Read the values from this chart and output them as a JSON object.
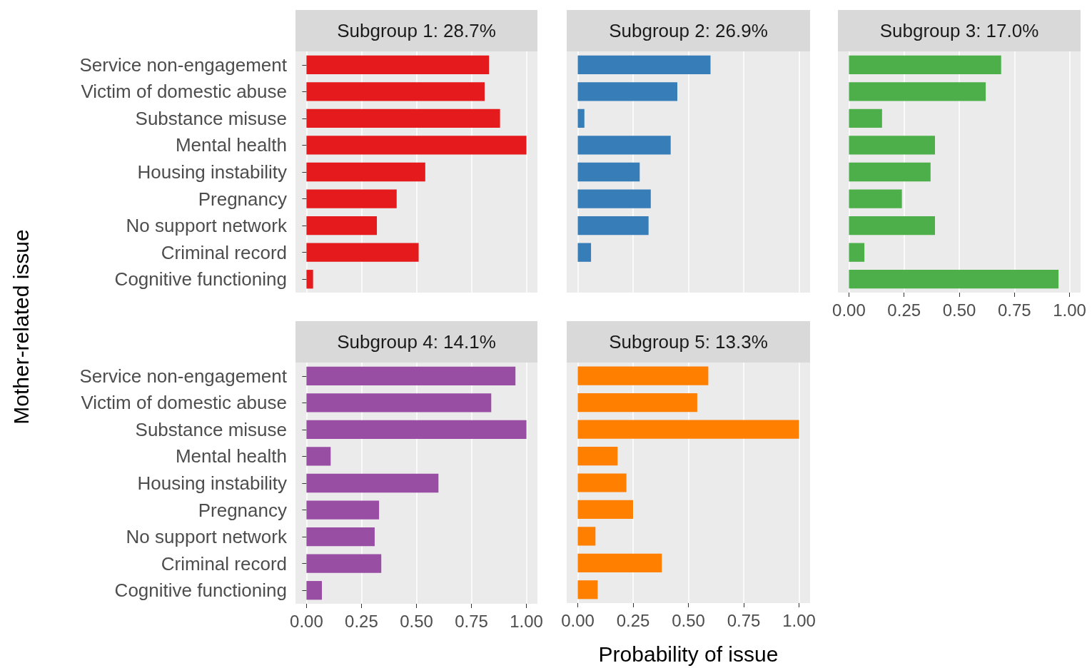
{
  "chart_data": [
    {
      "type": "bar",
      "orientation": "horizontal",
      "title": "Subgroup 1: 28.7%",
      "ylabel": "Mother-related issue",
      "categories": [
        "Service non-engagement",
        "Victim of domestic abuse",
        "Substance misuse",
        "Mental health",
        "Housing instability",
        "Pregnancy",
        "No support network",
        "Criminal record",
        "Cognitive functioning"
      ],
      "values": [
        0.83,
        0.81,
        0.88,
        1.0,
        0.54,
        0.41,
        0.32,
        0.51,
        0.03
      ],
      "color": "#e41a1c",
      "xlim": [
        -0.05,
        1.05
      ],
      "xticks": [
        {
          "value": 0,
          "label": null
        },
        {
          "value": 0.25,
          "label": null
        },
        {
          "value": 0.5,
          "label": null
        },
        {
          "value": 0.75,
          "label": null
        },
        {
          "value": 1,
          "label": null
        }
      ],
      "grid": true,
      "tick_labels": "y"
    },
    {
      "type": "bar",
      "orientation": "horizontal",
      "title": "Subgroup 2: 26.9%",
      "categories": [
        null,
        null,
        null,
        null,
        null,
        null,
        null,
        null,
        null
      ],
      "values": [
        0.6,
        0.45,
        0.03,
        0.42,
        0.28,
        0.33,
        0.32,
        0.06,
        0
      ],
      "color": "#377eb8",
      "xlim": [
        -0.05,
        1.05
      ],
      "xticks": [
        {
          "value": 0,
          "label": null
        },
        {
          "value": 0.25,
          "label": null
        },
        {
          "value": 0.5,
          "label": null
        },
        {
          "value": 0.75,
          "label": null
        },
        {
          "value": 1,
          "label": null
        }
      ],
      "grid": true,
      "tick_labels": false
    },
    {
      "type": "bar",
      "orientation": "horizontal",
      "title": "Subgroup 3: 17.0%",
      "categories": [
        null,
        null,
        null,
        null,
        null,
        null,
        null,
        null,
        null
      ],
      "values": [
        0.69,
        0.62,
        0.15,
        0.39,
        0.37,
        0.24,
        0.39,
        0.07,
        0.95
      ],
      "color": "#4daf4a",
      "xlim": [
        -0.05,
        1.05
      ],
      "xticks": [
        {
          "value": 0,
          "label": "0.00"
        },
        {
          "value": 0.25,
          "label": "0.25"
        },
        {
          "value": 0.5,
          "label": "0.50"
        },
        {
          "value": 0.75,
          "label": "0.75"
        },
        {
          "value": 1,
          "label": "1.00"
        }
      ],
      "grid": true,
      "tick_labels": "x"
    },
    {
      "type": "bar",
      "orientation": "horizontal",
      "title": "Subgroup 4: 14.1%",
      "categories": [
        "Service non-engagement",
        "Victim of domestic abuse",
        "Substance misuse",
        "Mental health",
        "Housing instability",
        "Pregnancy",
        "No support network",
        "Criminal record",
        "Cognitive functioning"
      ],
      "values": [
        0.95,
        0.84,
        1.0,
        0.11,
        0.6,
        0.33,
        0.31,
        0.34,
        0.07
      ],
      "color": "#984ea3",
      "xlim": [
        -0.05,
        1.05
      ],
      "xticks": [
        {
          "value": 0,
          "label": "0.00"
        },
        {
          "value": 0.25,
          "label": "0.25"
        },
        {
          "value": 0.5,
          "label": "0.50"
        },
        {
          "value": 0.75,
          "label": "0.75"
        },
        {
          "value": 1,
          "label": "1.00"
        }
      ],
      "grid": true
    },
    {
      "type": "bar",
      "orientation": "horizontal",
      "title": "Subgroup 5: 13.3%",
      "xlabel": "Probability of issue",
      "categories": [
        null,
        null,
        null,
        null,
        null,
        null,
        null,
        null,
        null
      ],
      "values": [
        0.59,
        0.54,
        1.0,
        0.18,
        0.22,
        0.25,
        0.08,
        0.38,
        0.09
      ],
      "color": "#ff7f00",
      "xlim": [
        -0.05,
        1.05
      ],
      "xticks": [
        {
          "value": 0,
          "label": "0.00"
        },
        {
          "value": 0.25,
          "label": "0.25"
        },
        {
          "value": 0.5,
          "label": "0.50"
        },
        {
          "value": 0.75,
          "label": "0.75"
        },
        {
          "value": 1,
          "label": "1.00"
        }
      ],
      "grid": true,
      "tick_labels": "x"
    }
  ]
}
